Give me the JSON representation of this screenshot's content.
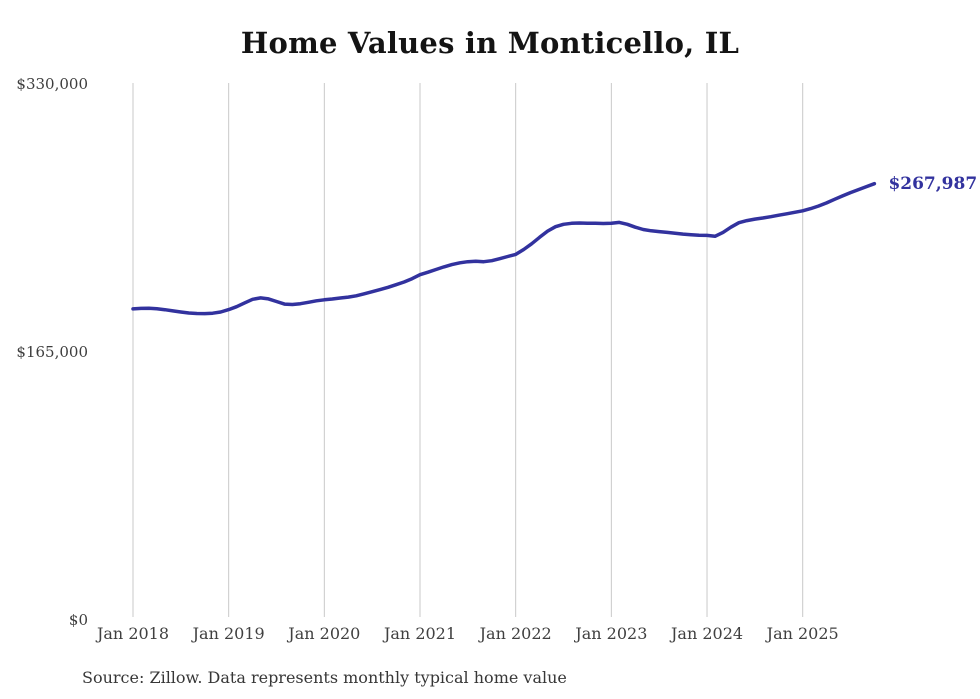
{
  "chart": {
    "title": "Home Values in Monticello, IL",
    "source_note": "Source: Zillow. Data represents monthly typical home value",
    "end_label": "$267,987",
    "line_color": "#32329e",
    "grid_color": "#c9c9c9",
    "background_color": "#ffffff"
  },
  "chart_data": {
    "type": "line",
    "title": "Home Values in Monticello, IL",
    "xlabel": "",
    "ylabel": "",
    "x_start": "2018-01",
    "x_interval": "monthly",
    "x_tick_labels": [
      "Jan 2018",
      "Jan 2019",
      "Jan 2020",
      "Jan 2021",
      "Jan 2022",
      "Jan 2023",
      "Jan 2024",
      "Jan 2025"
    ],
    "y_ticks": [
      0,
      165000,
      330000
    ],
    "y_tick_labels": [
      "$0",
      "$165,000",
      "$330,000"
    ],
    "ylim": [
      0,
      330000
    ],
    "grid": "vertical-only",
    "legend": "none",
    "end_value": 267987,
    "end_value_label": "$267,987",
    "series": [
      {
        "name": "Monthly typical home value",
        "values": [
          190900,
          191200,
          191300,
          191000,
          190400,
          189700,
          189000,
          188400,
          188100,
          188000,
          188300,
          189000,
          190500,
          192300,
          194600,
          196800,
          197700,
          197100,
          195500,
          193900,
          193600,
          194100,
          195000,
          195900,
          196500,
          197000,
          197600,
          198200,
          199000,
          200200,
          201500,
          202800,
          204200,
          205800,
          207500,
          209500,
          212000,
          213500,
          215200,
          216800,
          218200,
          219300,
          220000,
          220200,
          220000,
          220600,
          221800,
          223200,
          224500,
          227500,
          231000,
          235000,
          238800,
          241500,
          243000,
          243600,
          243800,
          243700,
          243600,
          243500,
          243600,
          244200,
          243000,
          241200,
          239800,
          239000,
          238500,
          238000,
          237500,
          237000,
          236600,
          236300,
          236200,
          235600,
          238000,
          241200,
          244000,
          245300,
          246200,
          246900,
          247700,
          248600,
          249500,
          250400,
          251300,
          252700,
          254300,
          256200,
          258400,
          260500,
          262500,
          264400,
          266200,
          267987
        ]
      }
    ]
  }
}
